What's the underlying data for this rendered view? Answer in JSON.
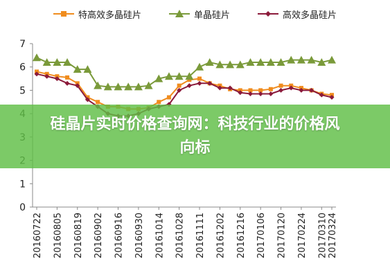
{
  "banner": {
    "title": "硅晶片实时价格查询网：科技行业的价格风向标"
  },
  "colors": {
    "background": "#ffffff",
    "banner": "#5fbe46",
    "axis": "#888888"
  },
  "chart_data": {
    "type": "line",
    "title": "",
    "xlabel": "",
    "ylabel": "",
    "ylim": [
      0,
      7
    ],
    "yticks": [
      0,
      1,
      2,
      3,
      4,
      5,
      6,
      7
    ],
    "grid": false,
    "legend_position": "top",
    "x_tick_labels": [
      "20160722",
      "20160805",
      "20160819",
      "20160902",
      "20160916",
      "20160930",
      "20161014",
      "20161028",
      "20161111",
      "20161202",
      "20161216",
      "20170106",
      "20170120",
      "20170224",
      "20170310",
      "20170324"
    ],
    "series": [
      {
        "name": "特高效多晶硅片",
        "color": "#f08c1e",
        "marker": "square",
        "values": [
          5.8,
          5.7,
          5.6,
          5.55,
          5.3,
          4.7,
          4.5,
          4.3,
          4.3,
          4.2,
          4.2,
          4.25,
          4.5,
          4.7,
          5.2,
          5.45,
          5.5,
          5.3,
          5.2,
          5.05,
          5.0,
          5.0,
          5.0,
          5.05,
          5.2,
          5.2,
          5.1,
          5.0,
          4.85,
          4.8
        ]
      },
      {
        "name": "单晶硅片",
        "color": "#7a9a3a",
        "marker": "triangle",
        "values": [
          6.4,
          6.2,
          6.2,
          6.2,
          5.9,
          5.9,
          5.2,
          5.15,
          5.15,
          5.15,
          5.15,
          5.2,
          5.5,
          5.6,
          5.6,
          5.6,
          6.0,
          6.2,
          6.1,
          6.1,
          6.1,
          6.2,
          6.2,
          6.2,
          6.2,
          6.3,
          6.3,
          6.3,
          6.2,
          6.3
        ]
      },
      {
        "name": "高效多晶硅片",
        "color": "#8b1a3a",
        "marker": "diamond",
        "values": [
          5.7,
          5.6,
          5.5,
          5.3,
          5.2,
          4.6,
          4.3,
          4.0,
          3.9,
          3.9,
          4.0,
          4.2,
          4.3,
          4.4,
          5.0,
          5.2,
          5.3,
          5.3,
          5.1,
          5.1,
          4.9,
          4.85,
          4.85,
          4.85,
          5.0,
          5.1,
          5.0,
          5.0,
          4.8,
          4.7
        ]
      }
    ]
  }
}
